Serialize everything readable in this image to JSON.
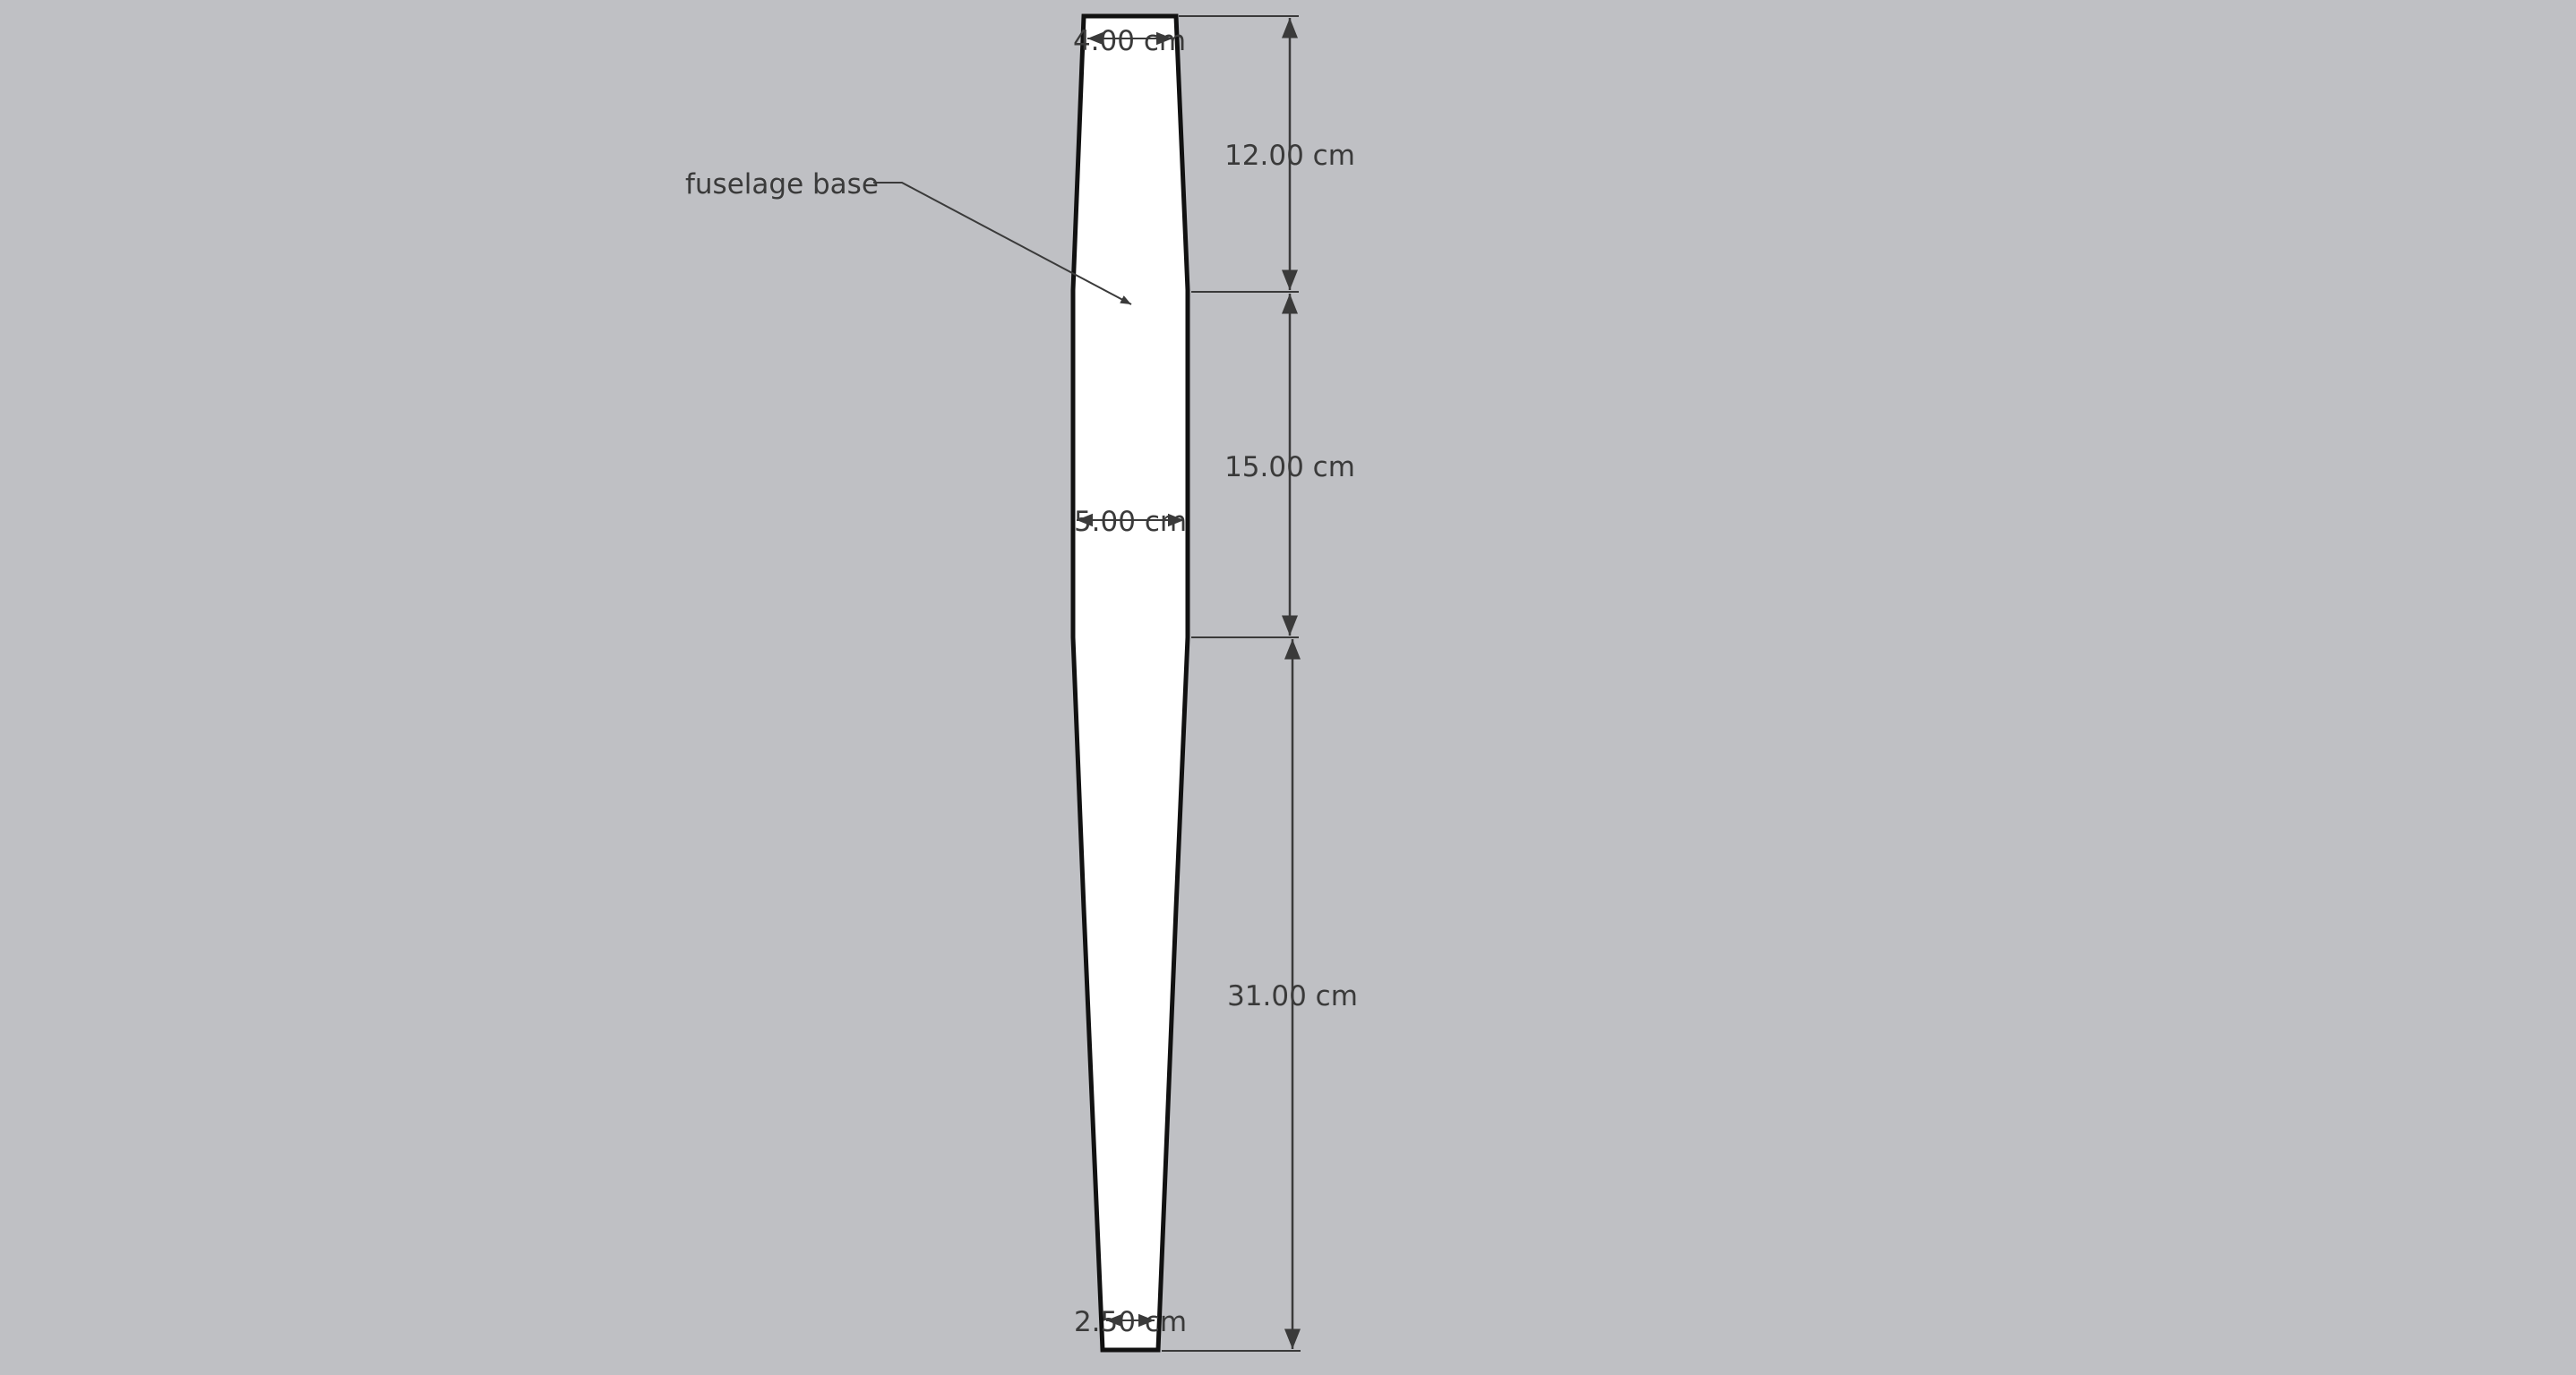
{
  "drawing": {
    "background_color": "#bfc0c4",
    "part_fill_color": "#ffffff",
    "outline_color": "#111111",
    "dimension_color": "#3a3a3a",
    "label": {
      "text": "fuselage base"
    },
    "width_dimensions": [
      {
        "id": "top",
        "text": "4.00 cm"
      },
      {
        "id": "middle",
        "text": "5.00 cm"
      },
      {
        "id": "bottom",
        "text": "2.50 cm"
      }
    ],
    "length_dimensions": [
      {
        "id": "upper",
        "text": "12.00 cm"
      },
      {
        "id": "center",
        "text": "15.00 cm"
      },
      {
        "id": "lower",
        "text": "31.00 cm"
      }
    ]
  }
}
